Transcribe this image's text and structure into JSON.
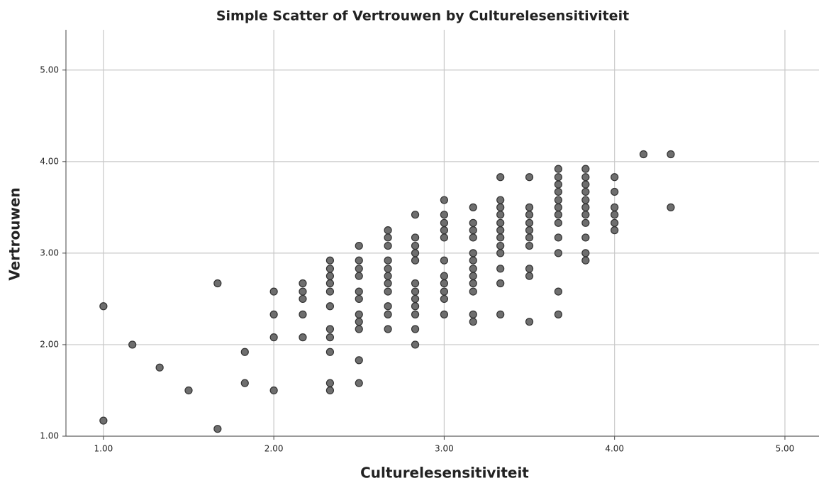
{
  "chart_data": {
    "type": "scatter",
    "title": "Simple Scatter of Vertrouwen by Culturelesensitiviteit",
    "x_label": "Culturelesensitiviteit",
    "y_label": "Vertrouwen",
    "color": "#6e6e6e",
    "grid": true,
    "xlim": [
      0.78,
      5.2
    ],
    "ylim": [
      1,
      5.44
    ],
    "xticks": [
      {
        "value": 1,
        "label": "1.00"
      },
      {
        "value": 2,
        "label": "2.00"
      },
      {
        "value": 3,
        "label": "3.00"
      },
      {
        "value": 4,
        "label": "4.00"
      },
      {
        "value": 5,
        "label": "5.00"
      }
    ],
    "yticks": [
      {
        "value": 1,
        "label": "1.00"
      },
      {
        "value": 2,
        "label": "2.00"
      },
      {
        "value": 3,
        "label": "3.00"
      },
      {
        "value": 4,
        "label": "4.00"
      },
      {
        "value": 5,
        "label": "5.00"
      }
    ],
    "x": [
      1.0,
      1.0,
      1.17,
      1.33,
      1.5,
      1.67,
      1.67,
      1.83,
      1.83,
      2.0,
      2.0,
      2.0,
      2.0,
      2.17,
      2.17,
      2.17,
      2.17,
      2.17,
      2.33,
      2.33,
      2.33,
      2.33,
      2.33,
      2.33,
      2.33,
      2.33,
      2.33,
      2.33,
      2.33,
      2.5,
      2.5,
      2.5,
      2.5,
      2.5,
      2.5,
      2.5,
      2.5,
      2.5,
      2.5,
      2.5,
      2.67,
      2.67,
      2.67,
      2.67,
      2.67,
      2.67,
      2.67,
      2.67,
      2.67,
      2.67,
      2.67,
      2.83,
      2.83,
      2.83,
      2.83,
      2.83,
      2.83,
      2.83,
      2.83,
      2.83,
      2.83,
      2.83,
      2.83,
      3.0,
      3.0,
      3.0,
      3.0,
      3.0,
      3.0,
      3.0,
      3.0,
      3.0,
      3.0,
      3.0,
      3.17,
      3.17,
      3.17,
      3.17,
      3.17,
      3.17,
      3.17,
      3.17,
      3.17,
      3.17,
      3.17,
      3.17,
      3.33,
      3.33,
      3.33,
      3.33,
      3.33,
      3.33,
      3.33,
      3.33,
      3.33,
      3.33,
      3.33,
      3.33,
      3.5,
      3.5,
      3.5,
      3.5,
      3.5,
      3.5,
      3.5,
      3.5,
      3.5,
      3.5,
      3.67,
      3.67,
      3.67,
      3.67,
      3.67,
      3.67,
      3.67,
      3.67,
      3.67,
      3.67,
      3.67,
      3.67,
      3.83,
      3.83,
      3.83,
      3.83,
      3.83,
      3.83,
      3.83,
      3.83,
      3.83,
      3.83,
      3.83,
      4.0,
      4.0,
      4.0,
      4.0,
      4.0,
      4.0,
      4.17,
      4.33,
      4.33
    ],
    "values": [
      2.42,
      1.17,
      2.0,
      1.75,
      1.5,
      2.67,
      1.08,
      1.92,
      1.58,
      2.58,
      2.33,
      2.08,
      1.5,
      2.67,
      2.58,
      2.5,
      2.33,
      2.08,
      2.92,
      2.83,
      2.75,
      2.67,
      2.58,
      2.42,
      2.17,
      2.08,
      1.92,
      1.58,
      1.5,
      3.08,
      2.92,
      2.83,
      2.75,
      2.58,
      2.5,
      2.33,
      2.25,
      2.17,
      1.83,
      1.58,
      3.25,
      3.17,
      3.08,
      2.92,
      2.83,
      2.75,
      2.67,
      2.58,
      2.42,
      2.33,
      2.17,
      3.42,
      3.17,
      3.08,
      3.0,
      2.92,
      2.67,
      2.58,
      2.5,
      2.42,
      2.33,
      2.17,
      2.0,
      3.58,
      3.42,
      3.33,
      3.25,
      3.17,
      2.92,
      2.75,
      2.67,
      2.58,
      2.5,
      2.33,
      3.5,
      3.33,
      3.25,
      3.17,
      3.0,
      2.92,
      2.83,
      2.75,
      2.67,
      2.58,
      2.33,
      2.25,
      3.83,
      3.58,
      3.5,
      3.42,
      3.33,
      3.25,
      3.17,
      3.08,
      3.0,
      2.83,
      2.67,
      2.33,
      3.83,
      3.5,
      3.42,
      3.33,
      3.25,
      3.17,
      3.08,
      2.83,
      2.75,
      2.25,
      3.92,
      3.83,
      3.75,
      3.67,
      3.58,
      3.5,
      3.42,
      3.33,
      3.17,
      3.0,
      2.58,
      2.33,
      3.92,
      3.83,
      3.75,
      3.67,
      3.58,
      3.5,
      3.42,
      3.33,
      3.17,
      3.0,
      2.92,
      3.83,
      3.67,
      3.5,
      3.42,
      3.33,
      3.25,
      4.08,
      4.08,
      3.5
    ]
  }
}
